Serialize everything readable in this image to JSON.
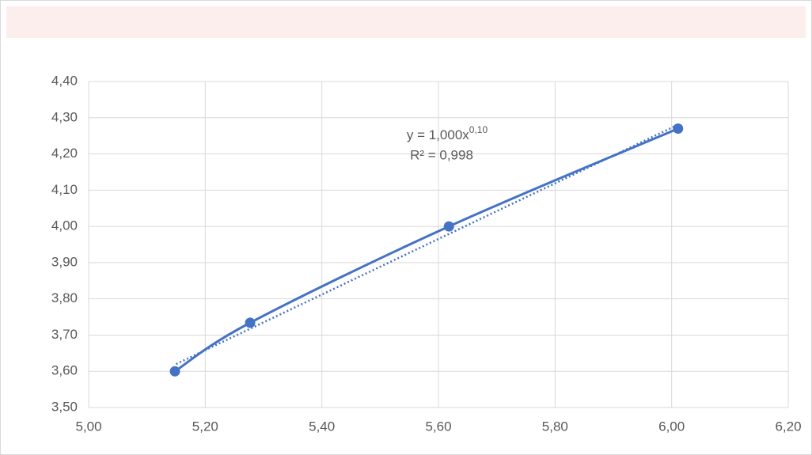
{
  "chart_data": {
    "type": "scatter",
    "x": [
      5.148,
      5.277,
      5.618,
      6.011
    ],
    "values": [
      3.6,
      3.734,
      4.0,
      4.27
    ],
    "color": "#4472c4",
    "smooth": true,
    "trendline": {
      "x": [
        5.15,
        6.01
      ],
      "values": [
        3.62,
        4.28
      ],
      "style": "dotted"
    },
    "equation": "y = 1,000x",
    "equation_exponent": "0,10",
    "r_squared": "R² = 0,998",
    "xlim": [
      5.0,
      6.2
    ],
    "ylim": [
      3.5,
      4.4
    ],
    "xticks": [
      {
        "value": 5.0,
        "label": "5,00"
      },
      {
        "value": 5.2,
        "label": "5,20"
      },
      {
        "value": 5.4,
        "label": "5,40"
      },
      {
        "value": 5.6,
        "label": "5,60"
      },
      {
        "value": 5.8,
        "label": "5,80"
      },
      {
        "value": 6.0,
        "label": "6,00"
      },
      {
        "value": 6.2,
        "label": "6,20"
      }
    ],
    "yticks": [
      {
        "value": 3.5,
        "label": "3,50"
      },
      {
        "value": 3.6,
        "label": "3,60"
      },
      {
        "value": 3.7,
        "label": "3,70"
      },
      {
        "value": 3.8,
        "label": "3,80"
      },
      {
        "value": 3.9,
        "label": "3,90"
      },
      {
        "value": 4.0,
        "label": "4,00"
      },
      {
        "value": 4.1,
        "label": "4,10"
      },
      {
        "value": 4.2,
        "label": "4,20"
      },
      {
        "value": 4.3,
        "label": "4,30"
      },
      {
        "value": 4.4,
        "label": "4,40"
      }
    ],
    "grid": true
  }
}
